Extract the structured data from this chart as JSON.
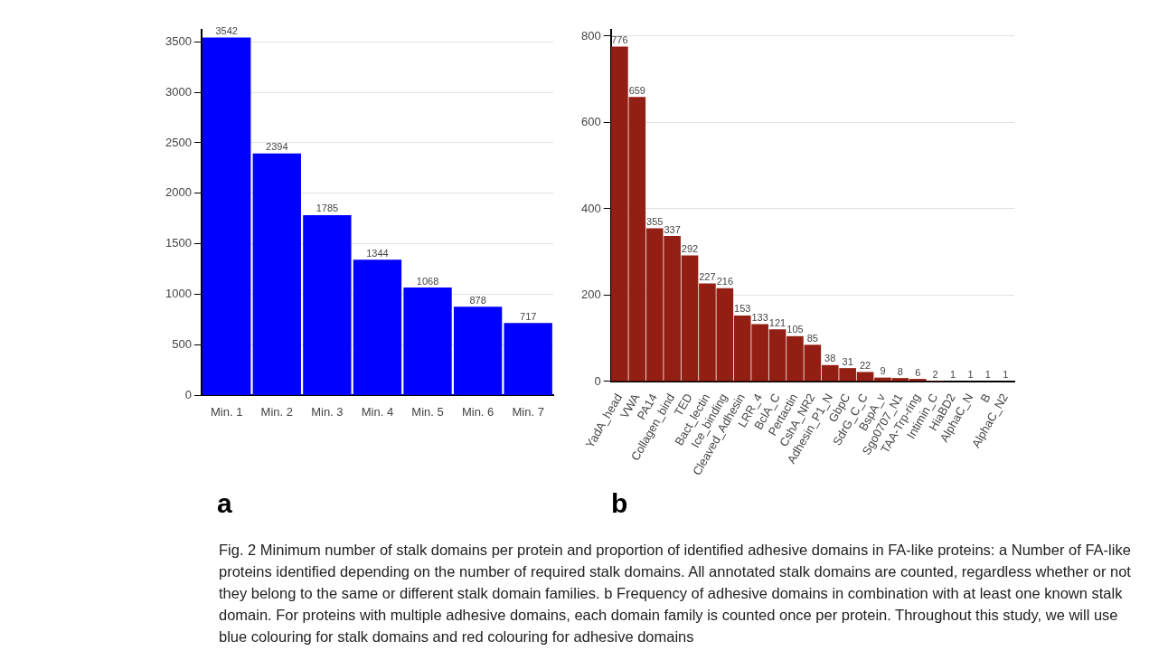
{
  "chart_data": [
    {
      "type": "bar",
      "categories": [
        "Min. 1",
        "Min. 2",
        "Min. 3",
        "Min. 4",
        "Min. 5",
        "Min. 6",
        "Min. 7"
      ],
      "values": [
        3542,
        2394,
        1785,
        1344,
        1068,
        878,
        717
      ],
      "color": "#0000ff",
      "data_labels": true,
      "ylim": [
        0,
        3620
      ],
      "yticks": [
        0,
        500,
        1000,
        1500,
        2000,
        2500,
        3000,
        3500
      ],
      "grid": "y",
      "annotations": [
        "a"
      ]
    },
    {
      "type": "bar",
      "categories": [
        "YadA_head",
        "VWA",
        "PA14",
        "Collagen_bind",
        "TED",
        "Bact_lectin",
        "Ice_binding",
        "Cleaved_Adhesin",
        "LRR_4",
        "BclA_C",
        "Pertactin",
        "CshA_NR2",
        "Adhesin_P1_N",
        "GbpC",
        "SdrG_C_C",
        "BspA_v",
        "Sgo0707_N1",
        "TAA-Trp-ring",
        "Intimin_C",
        "HiaBD2",
        "AlphaC_N",
        "B",
        "AlphaC_N2"
      ],
      "values": [
        776,
        659,
        355,
        337,
        292,
        227,
        216,
        153,
        133,
        121,
        105,
        85,
        38,
        31,
        22,
        9,
        8,
        6,
        2,
        1,
        1,
        1,
        1
      ],
      "color": "#931e13",
      "data_labels": true,
      "ylim": [
        0,
        815
      ],
      "yticks": [
        0,
        200,
        400,
        600,
        800
      ],
      "grid": "y",
      "annotations": [
        "b",
        "Fig. 2 Minimum number of stalk domains per protein and proportion of identified adhesive domains in FA-like proteins: a Number of FA-like proteins identified depending on the number of required stalk domains. All annotated stalk domains are counted, regardless whether or not they belong to the same or different stalk domain families. b Frequency of adhesive domains in combination with at least one known stalk domain. For proteins with multiple adhesive domains, each domain family is counted once per protein. Throughout this study, we will use blue colouring for stalk domains and red colouring for adhesive domains"
      ]
    }
  ]
}
